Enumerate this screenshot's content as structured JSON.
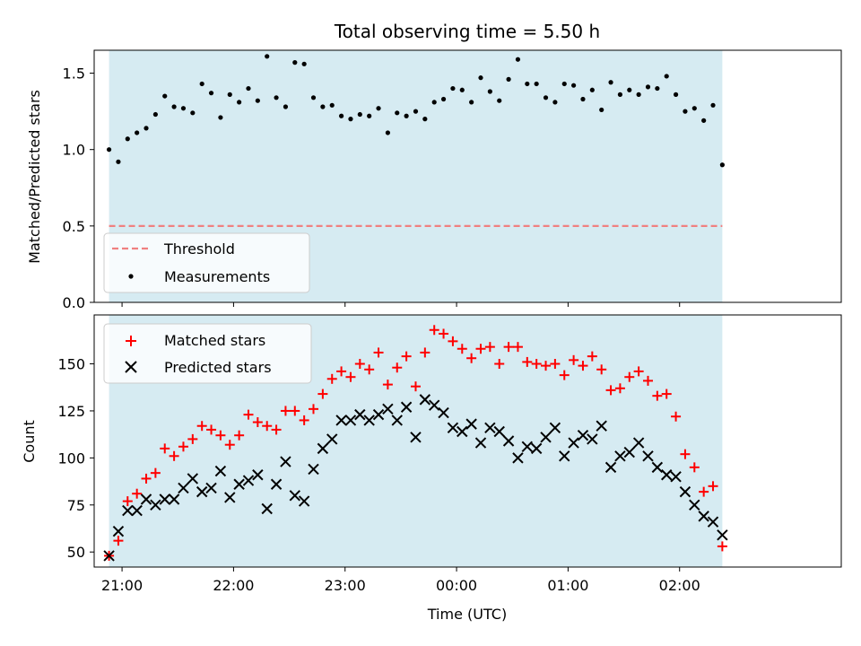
{
  "chart_data": [
    {
      "type": "scatter",
      "title": "Total observing time = 5.50 h",
      "ylabel": "Matched/Predicted stars",
      "xlabel": "",
      "ylim": [
        0,
        1.65
      ],
      "yticks": [
        "0.0",
        "0.5",
        "1.0",
        "1.5"
      ],
      "ytick_values": [
        0,
        0.5,
        1.0,
        1.5
      ],
      "grid": false,
      "legend_position": "lower-left",
      "shaded_span": [
        "20:53",
        "02:23"
      ],
      "threshold": {
        "name": "Threshold",
        "value": 0.5,
        "color": "#f08080",
        "style": "dashed"
      },
      "series": [
        {
          "name": "Measurements",
          "color": "#000000",
          "marker": "dot",
          "x": [
            "20:53",
            "20:58",
            "21:03",
            "21:08",
            "21:13",
            "21:18",
            "21:23",
            "21:28",
            "21:33",
            "21:38",
            "21:43",
            "21:48",
            "21:53",
            "21:58",
            "22:03",
            "22:08",
            "22:13",
            "22:18",
            "22:23",
            "22:28",
            "22:33",
            "22:38",
            "22:43",
            "22:48",
            "22:53",
            "22:58",
            "23:03",
            "23:08",
            "23:13",
            "23:18",
            "23:23",
            "23:28",
            "23:33",
            "23:38",
            "23:43",
            "23:48",
            "23:53",
            "23:58",
            "00:03",
            "00:08",
            "00:13",
            "00:18",
            "00:23",
            "00:28",
            "00:33",
            "00:38",
            "00:43",
            "00:48",
            "00:53",
            "00:58",
            "01:03",
            "01:08",
            "01:13",
            "01:18",
            "01:23",
            "01:28",
            "01:33",
            "01:38",
            "01:43",
            "01:48",
            "01:53",
            "01:58",
            "02:03",
            "02:08",
            "02:13",
            "02:18",
            "02:23"
          ],
          "y": [
            1.0,
            0.92,
            1.07,
            1.11,
            1.14,
            1.23,
            1.35,
            1.28,
            1.27,
            1.24,
            1.43,
            1.37,
            1.21,
            1.36,
            1.31,
            1.4,
            1.32,
            1.61,
            1.34,
            1.28,
            1.57,
            1.56,
            1.34,
            1.28,
            1.29,
            1.22,
            1.2,
            1.23,
            1.22,
            1.27,
            1.11,
            1.24,
            1.22,
            1.25,
            1.2,
            1.31,
            1.33,
            1.4,
            1.39,
            1.31,
            1.47,
            1.38,
            1.32,
            1.46,
            1.59,
            1.43,
            1.43,
            1.34,
            1.31,
            1.43,
            1.42,
            1.33,
            1.39,
            1.26,
            1.44,
            1.36,
            1.39,
            1.36,
            1.41,
            1.4,
            1.48,
            1.36,
            1.25,
            1.27,
            1.19,
            1.29,
            0.9
          ]
        }
      ]
    },
    {
      "type": "scatter",
      "title": "",
      "ylabel": "Count",
      "xlabel": "Time (UTC)",
      "ylim": [
        42,
        176
      ],
      "yticks": [
        "50",
        "75",
        "100",
        "125",
        "150"
      ],
      "ytick_values": [
        50,
        75,
        100,
        125,
        150
      ],
      "xticks": [
        "21:00",
        "22:00",
        "23:00",
        "00:00",
        "01:00",
        "02:00"
      ],
      "grid": false,
      "legend_position": "upper-left",
      "shaded_span": [
        "20:53",
        "02:23"
      ],
      "series": [
        {
          "name": "Matched stars",
          "color": "#ff0000",
          "marker": "plus",
          "x": [
            "20:53",
            "20:58",
            "21:03",
            "21:08",
            "21:13",
            "21:18",
            "21:23",
            "21:28",
            "21:33",
            "21:38",
            "21:43",
            "21:48",
            "21:53",
            "21:58",
            "22:03",
            "22:08",
            "22:13",
            "22:18",
            "22:23",
            "22:28",
            "22:33",
            "22:38",
            "22:43",
            "22:48",
            "22:53",
            "22:58",
            "23:03",
            "23:08",
            "23:13",
            "23:18",
            "23:23",
            "23:28",
            "23:33",
            "23:38",
            "23:43",
            "23:48",
            "23:53",
            "23:58",
            "00:03",
            "00:08",
            "00:13",
            "00:18",
            "00:23",
            "00:28",
            "00:33",
            "00:38",
            "00:43",
            "00:48",
            "00:53",
            "00:58",
            "01:03",
            "01:08",
            "01:13",
            "01:18",
            "01:23",
            "01:28",
            "01:33",
            "01:38",
            "01:43",
            "01:48",
            "01:53",
            "01:58",
            "02:03",
            "02:08",
            "02:13",
            "02:18",
            "02:23"
          ],
          "y": [
            48,
            56,
            77,
            81,
            89,
            92,
            105,
            101,
            106,
            110,
            117,
            115,
            112,
            107,
            112,
            123,
            119,
            117,
            115,
            125,
            125,
            120,
            126,
            134,
            142,
            146,
            143,
            150,
            147,
            156,
            139,
            148,
            154,
            138,
            156,
            168,
            166,
            162,
            158,
            153,
            158,
            159,
            150,
            159,
            159,
            151,
            150,
            149,
            150,
            144,
            152,
            149,
            154,
            147,
            136,
            137,
            143,
            146,
            141,
            133,
            134,
            122,
            102,
            95,
            82,
            85,
            53
          ]
        },
        {
          "name": "Predicted stars",
          "color": "#000000",
          "marker": "x",
          "x": [
            "20:53",
            "20:58",
            "21:03",
            "21:08",
            "21:13",
            "21:18",
            "21:23",
            "21:28",
            "21:33",
            "21:38",
            "21:43",
            "21:48",
            "21:53",
            "21:58",
            "22:03",
            "22:08",
            "22:13",
            "22:18",
            "22:23",
            "22:28",
            "22:33",
            "22:38",
            "22:43",
            "22:48",
            "22:53",
            "22:58",
            "23:03",
            "23:08",
            "23:13",
            "23:18",
            "23:23",
            "23:28",
            "23:33",
            "23:38",
            "23:43",
            "23:48",
            "23:53",
            "23:58",
            "00:03",
            "00:08",
            "00:13",
            "00:18",
            "00:23",
            "00:28",
            "00:33",
            "00:38",
            "00:43",
            "00:48",
            "00:53",
            "00:58",
            "01:03",
            "01:08",
            "01:13",
            "01:18",
            "01:23",
            "01:28",
            "01:33",
            "01:38",
            "01:43",
            "01:48",
            "01:53",
            "01:58",
            "02:03",
            "02:08",
            "02:13",
            "02:18",
            "02:23"
          ],
          "y": [
            48,
            61,
            72,
            72,
            78,
            75,
            78,
            78,
            84,
            89,
            82,
            84,
            93,
            79,
            86,
            88,
            91,
            73,
            86,
            98,
            80,
            77,
            94,
            105,
            110,
            120,
            120,
            123,
            120,
            123,
            126,
            120,
            127,
            111,
            131,
            128,
            124,
            116,
            114,
            118,
            108,
            116,
            114,
            109,
            100,
            106,
            105,
            111,
            116,
            101,
            108,
            112,
            110,
            117,
            95,
            101,
            103,
            108,
            101,
            95,
            91,
            90,
            82,
            75,
            69,
            66,
            59
          ]
        }
      ]
    }
  ]
}
